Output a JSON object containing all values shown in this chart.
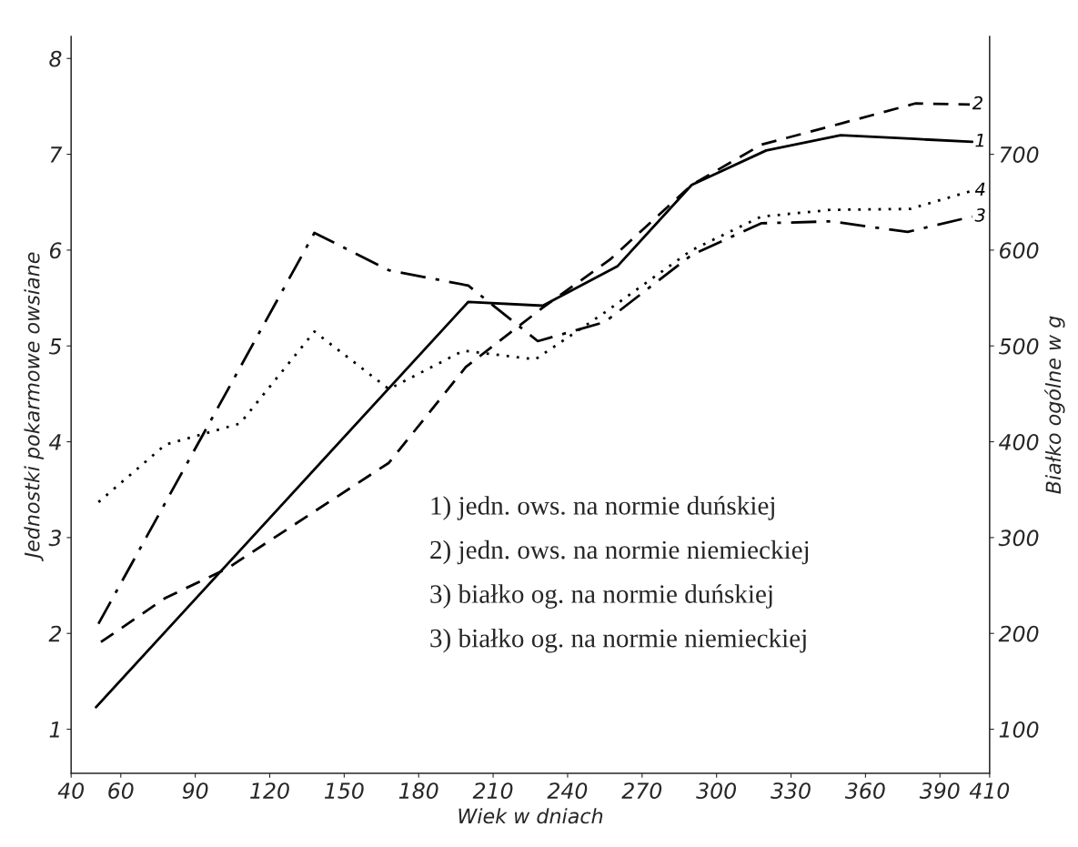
{
  "chart_data": {
    "type": "line",
    "xlabel": "Wiek w dniach",
    "ylabel": "Jednostki pokarmowe owsiane",
    "y2label": "Białko ogólne w g",
    "xlim": [
      40,
      410
    ],
    "xticks": [
      40,
      60,
      90,
      120,
      150,
      180,
      210,
      240,
      270,
      300,
      330,
      360,
      390,
      410
    ],
    "ylim": [
      0.54,
      8.23
    ],
    "yticks": [
      1,
      2,
      3,
      4,
      5,
      6,
      7,
      8
    ],
    "y2lim": [
      54,
      823
    ],
    "y2ticks": [
      100,
      200,
      300,
      400,
      500,
      600,
      700
    ],
    "grid": false,
    "marker": "none",
    "series": [
      {
        "name": "1",
        "color": "#000000",
        "line_style": "solid",
        "x": [
          50,
          200,
          230,
          260,
          290,
          320,
          350,
          380,
          403
        ],
        "values": [
          1.23,
          5.46,
          5.42,
          5.83,
          6.68,
          7.04,
          7.2,
          7.16,
          7.13
        ]
      },
      {
        "name": "2",
        "color": "#000000",
        "line_style": "dashed",
        "x": [
          52,
          78,
          103,
          168,
          199,
          205,
          230,
          257,
          290,
          318,
          350,
          380,
          402
        ],
        "values": [
          1.91,
          2.37,
          2.68,
          3.78,
          4.78,
          4.9,
          5.4,
          5.9,
          6.68,
          7.1,
          7.32,
          7.53,
          7.52
        ]
      },
      {
        "name": "3",
        "color": "#000000",
        "line_style": "dashdot",
        "axis": "y2",
        "x": [
          51,
          138,
          168,
          200,
          228,
          255,
          290,
          318,
          346,
          377,
          403
        ],
        "values": [
          210,
          618,
          579,
          563,
          505,
          525,
          595,
          628,
          630,
          619,
          635
        ]
      },
      {
        "name": "4",
        "color": "#000000",
        "line_style": "dotted",
        "axis": "y2",
        "x": [
          51,
          78,
          108,
          138,
          168,
          198,
          227,
          255,
          290,
          318,
          346,
          378,
          403
        ],
        "values": [
          337,
          397,
          419,
          515,
          455,
          495,
          486,
          535,
          600,
          635,
          642,
          643,
          662
        ]
      }
    ],
    "annotations": [
      "1) jedn. ows. na normie duńskiej",
      "2) jedn. ows. na normie niemieckiej",
      "3) białko og. na normie duńskiej",
      "3) białko og. na normie niemieckiej"
    ]
  }
}
